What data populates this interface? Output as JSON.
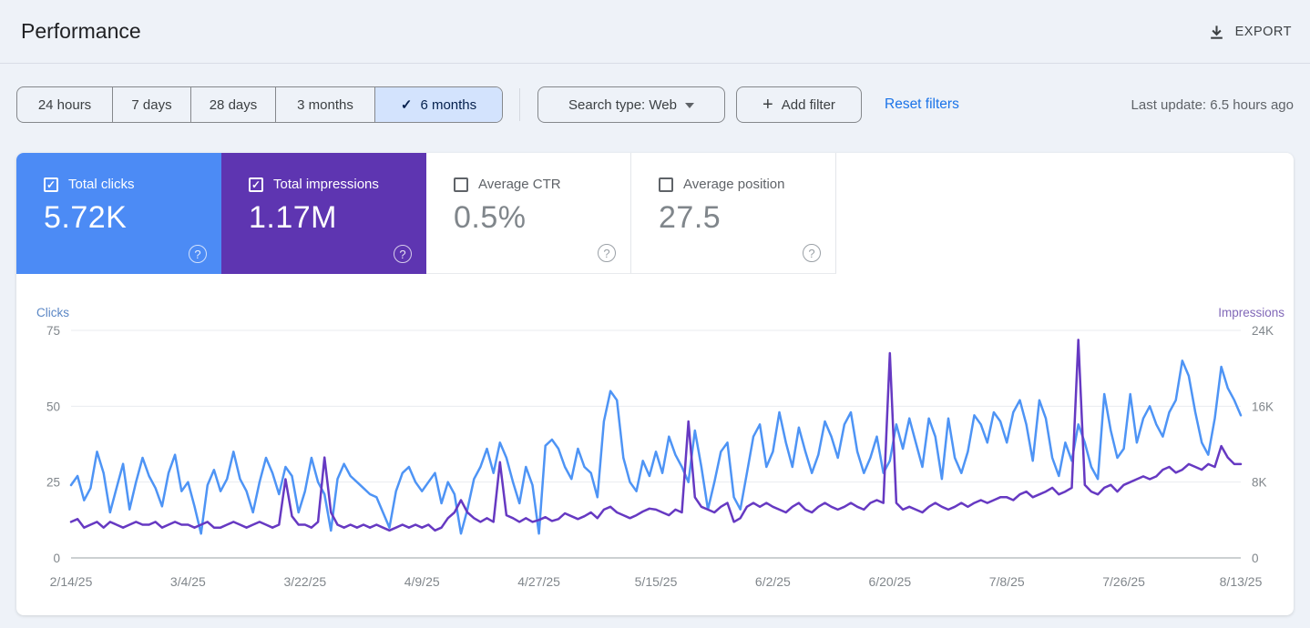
{
  "header": {
    "title": "Performance",
    "export_label": "EXPORT"
  },
  "icons": {
    "check": "✓",
    "plus": "+",
    "question": "?"
  },
  "filters": {
    "date_ranges": [
      {
        "label": "24 hours",
        "selected": false
      },
      {
        "label": "7 days",
        "selected": false
      },
      {
        "label": "28 days",
        "selected": false
      },
      {
        "label": "3 months",
        "selected": false
      },
      {
        "label": "6 months",
        "selected": true
      }
    ],
    "search_type_label": "Search type: Web",
    "add_filter_label": "Add filter",
    "reset_label": "Reset filters",
    "last_update": "Last update: 6.5 hours ago"
  },
  "metrics": [
    {
      "label": "Total clicks",
      "value": "5.72K",
      "checked": true,
      "bg": "#4c8bf5"
    },
    {
      "label": "Total impressions",
      "value": "1.17M",
      "checked": true,
      "bg": "#5e35b1"
    },
    {
      "label": "Average CTR",
      "value": "0.5%",
      "checked": false,
      "bg": "#ffffff"
    },
    {
      "label": "Average position",
      "value": "27.5",
      "checked": false,
      "bg": "#ffffff"
    }
  ],
  "colors": {
    "link_blue": "#1a73e8",
    "selected_chip_bg": "#d3e3fd",
    "clicks_line": "#4e94f5",
    "impressions_line": "#6639c2"
  },
  "chart_data": {
    "type": "line",
    "n_points": 181,
    "x_tick_labels": [
      "2/14/25",
      "3/4/25",
      "3/22/25",
      "4/9/25",
      "4/27/25",
      "5/15/25",
      "6/2/25",
      "6/20/25",
      "7/8/25",
      "7/26/25",
      "8/13/25"
    ],
    "x_tick_step": 18,
    "grid": "horizontal",
    "left_axis": {
      "title": "Clicks",
      "title_color": "#5b87c5",
      "ticks": [
        0,
        25,
        50,
        75
      ],
      "tick_labels": [
        "0",
        "25",
        "50",
        "75"
      ],
      "range": [
        0,
        75
      ]
    },
    "right_axis": {
      "title": "Impressions",
      "title_color": "#8168b8",
      "ticks": [
        0,
        8000,
        16000,
        24000
      ],
      "tick_labels": [
        "0",
        "8K",
        "16K",
        "24K"
      ],
      "range": [
        0,
        24000
      ]
    },
    "series": [
      {
        "name": "Clicks",
        "axis": "left",
        "color": "#4e94f5",
        "values": [
          24,
          27,
          19,
          23,
          35,
          28,
          15,
          23,
          31,
          16,
          25,
          33,
          27,
          23,
          17,
          28,
          34,
          22,
          25,
          17,
          8,
          24,
          29,
          22,
          26,
          35,
          26,
          22,
          15,
          25,
          33,
          28,
          21,
          30,
          27,
          15,
          22,
          33,
          25,
          21,
          9,
          26,
          31,
          27,
          25,
          23,
          21,
          20,
          15,
          10,
          22,
          28,
          30,
          25,
          22,
          25,
          28,
          18,
          25,
          21,
          8,
          16,
          26,
          30,
          36,
          28,
          38,
          33,
          25,
          18,
          30,
          24,
          8,
          37,
          39,
          36,
          30,
          26,
          36,
          30,
          28,
          20,
          45,
          55,
          52,
          33,
          25,
          22,
          32,
          27,
          35,
          28,
          40,
          34,
          30,
          25,
          42,
          30,
          16,
          25,
          35,
          38,
          20,
          16,
          28,
          40,
          44,
          30,
          35,
          48,
          38,
          30,
          43,
          35,
          28,
          34,
          45,
          40,
          33,
          44,
          48,
          35,
          28,
          33,
          40,
          28,
          32,
          44,
          36,
          46,
          38,
          30,
          46,
          40,
          26,
          46,
          33,
          28,
          35,
          47,
          44,
          38,
          48,
          45,
          38,
          48,
          52,
          44,
          32,
          52,
          46,
          33,
          27,
          38,
          32,
          44,
          38,
          30,
          26,
          54,
          42,
          33,
          36,
          54,
          38,
          46,
          50,
          44,
          40,
          48,
          52,
          65,
          60,
          48,
          38,
          34,
          46,
          63,
          56,
          52,
          47
        ]
      },
      {
        "name": "Impressions",
        "axis": "right",
        "color": "#6639c2",
        "values": [
          3800,
          4100,
          3200,
          3500,
          3800,
          3200,
          3800,
          3500,
          3200,
          3500,
          3800,
          3500,
          3500,
          3800,
          3200,
          3500,
          3800,
          3500,
          3500,
          3200,
          3500,
          3800,
          3200,
          3200,
          3500,
          3800,
          3500,
          3200,
          3500,
          3800,
          3500,
          3200,
          3500,
          8300,
          4400,
          3500,
          3500,
          3200,
          3800,
          10600,
          4800,
          3500,
          3200,
          3500,
          3200,
          3500,
          3200,
          3500,
          3200,
          2900,
          3200,
          3500,
          3200,
          3500,
          3200,
          3500,
          2900,
          3200,
          4200,
          4800,
          6100,
          4800,
          4200,
          3800,
          4200,
          3800,
          10100,
          4500,
          4200,
          3800,
          4200,
          3800,
          4000,
          4300,
          3900,
          4100,
          4700,
          4400,
          4100,
          4400,
          4800,
          4200,
          5100,
          5400,
          4800,
          4500,
          4200,
          4500,
          4900,
          5200,
          5100,
          4800,
          4500,
          5100,
          4800,
          14400,
          6400,
          5400,
          5100,
          4800,
          5400,
          5800,
          3800,
          4200,
          5400,
          5800,
          5400,
          5800,
          5400,
          5100,
          4800,
          5400,
          5800,
          5100,
          4800,
          5400,
          5800,
          5400,
          5100,
          5400,
          5800,
          5400,
          5100,
          5800,
          6100,
          5800,
          21600,
          5800,
          5100,
          5400,
          5100,
          4800,
          5400,
          5800,
          5400,
          5100,
          5400,
          5800,
          5400,
          5800,
          6100,
          5800,
          6100,
          6400,
          6400,
          6100,
          6700,
          7000,
          6400,
          6700,
          7000,
          7400,
          6700,
          7000,
          7400,
          23000,
          7700,
          7000,
          6700,
          7400,
          7700,
          7000,
          7700,
          8000,
          8300,
          8600,
          8300,
          8600,
          9300,
          9600,
          9000,
          9300,
          9900,
          9600,
          9300,
          9900,
          9600,
          11800,
          10600,
          9900,
          9900
        ]
      }
    ]
  }
}
